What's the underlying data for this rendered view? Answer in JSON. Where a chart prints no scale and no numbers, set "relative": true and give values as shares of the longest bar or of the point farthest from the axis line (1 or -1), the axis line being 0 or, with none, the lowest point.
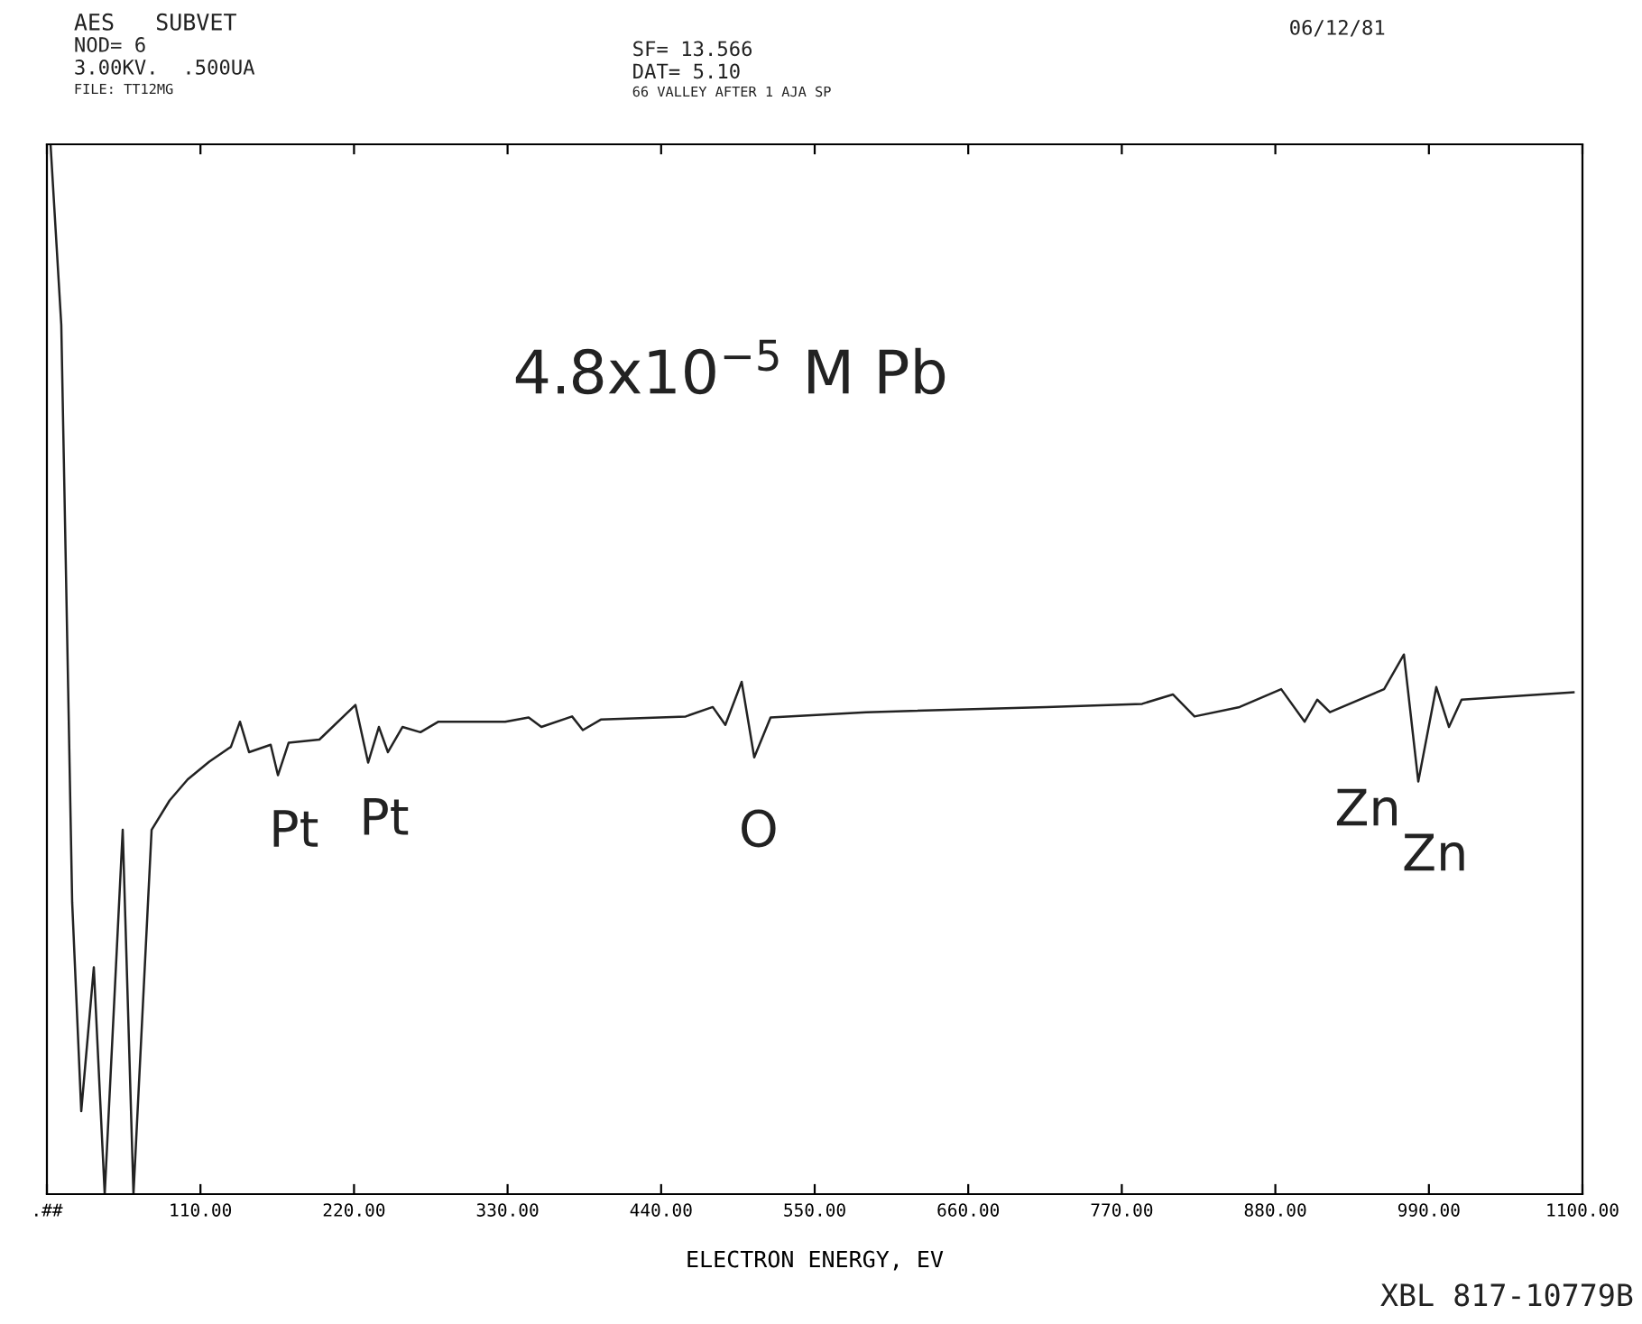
{
  "chart_data": {
    "type": "line",
    "relative": true,
    "xlabel": "ELECTRON ENERGY, EV",
    "color": "#222222",
    "grid": false,
    "legend": false,
    "marker": "none",
    "line_style": "solid",
    "tick_labels": "x",
    "xlim": [
      0,
      1100
    ],
    "xticks": [
      {
        "value": 0,
        "label": ".##"
      },
      {
        "value": 110,
        "label": "110.00"
      },
      {
        "value": 220,
        "label": "220.00"
      },
      {
        "value": 330,
        "label": "330.00"
      },
      {
        "value": 440,
        "label": "440.00"
      },
      {
        "value": 550,
        "label": "550.00"
      },
      {
        "value": 660,
        "label": "660.00"
      },
      {
        "value": 770,
        "label": "770.00"
      },
      {
        "value": 880,
        "label": "880.00"
      },
      {
        "value": 990,
        "label": "990.00"
      },
      {
        "value": 1100,
        "label": "1100.00"
      }
    ],
    "x": [
      2.6,
      10.3,
      18.1,
      24.6,
      33.6,
      41.4,
      54.3,
      62.0,
      75.0,
      87.9,
      100.8,
      116.3,
      131.8,
      138.3,
      144.8,
      160.3,
      165.5,
      173.2,
      195.2,
      221.0,
      230.1,
      237.8,
      244.3,
      254.7,
      267.6,
      280.5,
      328.3,
      345.1,
      354.2,
      376.2,
      383.9,
      396.8,
      457.6,
      477.0,
      486.0,
      497.7,
      506.7,
      518.4,
      586.9,
      716.1,
      784.6,
      806.6,
      822.1,
      854.4,
      884.2,
      901.0,
      910.0,
      919.1,
      957.9,
      972.1,
      982.4,
      995.3,
      1004.4,
      1013.4,
      1093.6
    ],
    "values": [
      1.0,
      0.828,
      0.278,
      0.079,
      0.216,
      0.0,
      0.347,
      0.0,
      0.347,
      0.375,
      0.395,
      0.412,
      0.426,
      0.45,
      0.421,
      0.428,
      0.399,
      0.43,
      0.433,
      0.466,
      0.411,
      0.445,
      0.421,
      0.445,
      0.44,
      0.45,
      0.45,
      0.454,
      0.445,
      0.455,
      0.442,
      0.452,
      0.455,
      0.464,
      0.447,
      0.488,
      0.416,
      0.454,
      0.459,
      0.464,
      0.467,
      0.476,
      0.455,
      0.464,
      0.481,
      0.45,
      0.471,
      0.459,
      0.481,
      0.514,
      0.393,
      0.483,
      0.445,
      0.471,
      0.478
    ],
    "annotations": [
      "AES   SUBVET",
      "NOD= 6",
      "3.00KV.  .500UA",
      "FILE: TT12MG",
      "SF= 13.566",
      "DAT= 5.10",
      "66 VALLEY AFTER 1 AJA SP",
      "06/12/81",
      "4.8x10$^{−5}$ M Pb",
      "XBL 817-10779B",
      "Pt",
      "Pt",
      "O",
      "Zn",
      "Zn"
    ]
  }
}
